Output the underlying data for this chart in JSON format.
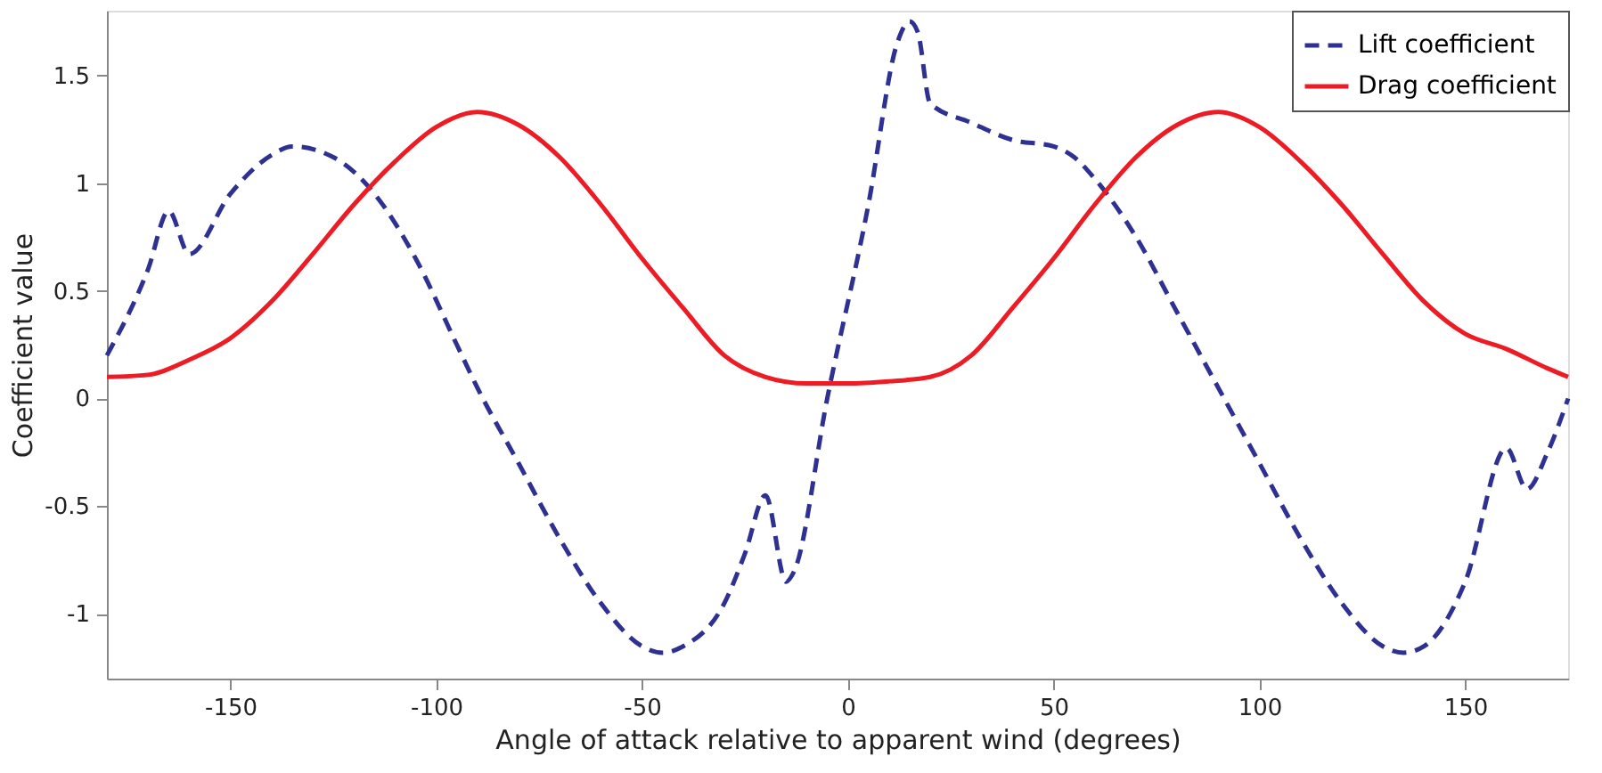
{
  "chart_data": {
    "type": "line",
    "xlabel": "Angle of attack relative to apparent wind (degrees)",
    "ylabel": "Coefficient value",
    "xlim": [
      -180,
      175
    ],
    "ylim": [
      -1.3,
      1.8
    ],
    "xticks": [
      -150,
      -100,
      -50,
      0,
      50,
      100,
      150
    ],
    "yticks": [
      -1,
      -0.5,
      0,
      0.5,
      1,
      1.5
    ],
    "grid": false,
    "legend": "top right",
    "marker": "none",
    "series": [
      {
        "name": "Lift coefficient",
        "color": "#2e3192",
        "line_style": "dashed",
        "x": [
          -180,
          -170,
          -165,
          -160,
          -150,
          -140,
          -135,
          -125,
          -115,
          -105,
          -95,
          -90,
          -80,
          -70,
          -60,
          -50,
          -45,
          -40,
          -30,
          -25,
          -20,
          -15,
          -13,
          -5,
          5,
          12,
          15,
          17,
          20,
          30,
          40,
          50,
          55,
          60,
          70,
          80,
          90,
          100,
          110,
          120,
          130,
          135,
          140,
          150,
          160,
          165,
          170,
          175
        ],
        "values": [
          0.2,
          0.6,
          0.87,
          0.67,
          0.95,
          1.13,
          1.17,
          1.12,
          0.95,
          0.65,
          0.25,
          0.05,
          -0.3,
          -0.65,
          -0.95,
          -1.15,
          -1.18,
          -1.15,
          -0.95,
          -0.72,
          -0.45,
          -0.85,
          -0.8,
          0.0,
          0.9,
          1.65,
          1.75,
          1.7,
          1.37,
          1.28,
          1.2,
          1.17,
          1.12,
          1.02,
          0.75,
          0.4,
          0.05,
          -0.3,
          -0.65,
          -0.95,
          -1.15,
          -1.18,
          -1.15,
          -0.85,
          -0.23,
          -0.42,
          -0.25,
          0.0
        ]
      },
      {
        "name": "Drag coefficient",
        "color": "#ed1c24",
        "line_style": "solid",
        "x": [
          -180,
          -170,
          -160,
          -150,
          -140,
          -130,
          -120,
          -110,
          -100,
          -90,
          -80,
          -70,
          -60,
          -50,
          -40,
          -30,
          -20,
          -10,
          0,
          10,
          20,
          30,
          40,
          50,
          60,
          70,
          80,
          90,
          100,
          110,
          120,
          130,
          140,
          150,
          160,
          170,
          175
        ],
        "values": [
          0.1,
          0.11,
          0.18,
          0.28,
          0.45,
          0.67,
          0.9,
          1.1,
          1.26,
          1.33,
          1.27,
          1.12,
          0.9,
          0.65,
          0.42,
          0.2,
          0.1,
          0.07,
          0.07,
          0.08,
          0.1,
          0.2,
          0.42,
          0.65,
          0.9,
          1.12,
          1.27,
          1.33,
          1.26,
          1.1,
          0.9,
          0.67,
          0.45,
          0.3,
          0.23,
          0.14,
          0.1
        ]
      }
    ]
  }
}
